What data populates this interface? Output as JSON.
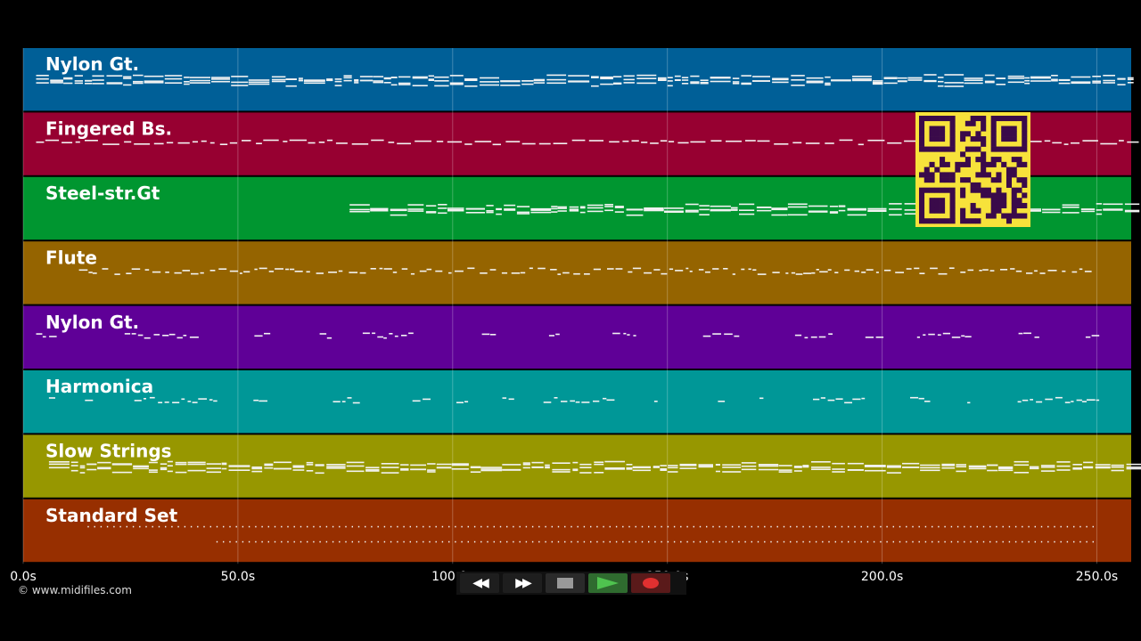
{
  "timeline": {
    "max_seconds": 258.0,
    "ticks": [
      {
        "value": 0,
        "label": "0.0s"
      },
      {
        "value": 50,
        "label": "50.0s"
      },
      {
        "value": 100,
        "label": "100.0s"
      },
      {
        "value": 150,
        "label": "150.0s"
      },
      {
        "value": 200,
        "label": "200.0s"
      },
      {
        "value": 250,
        "label": "250.0s"
      }
    ]
  },
  "tracks": [
    {
      "name": "Nylon Gt.",
      "color": "#005f97",
      "active": [
        3,
        258
      ],
      "density": "dense"
    },
    {
      "name": "Fingered Bs.",
      "color": "#970031",
      "active": [
        3,
        258
      ],
      "density": "sparse-line"
    },
    {
      "name": "Steel-str.Gt",
      "color": "#009630",
      "active": [
        76,
        258
      ],
      "density": "dense"
    },
    {
      "name": "Flute",
      "color": "#956400",
      "active": [
        13,
        248
      ],
      "density": "melody"
    },
    {
      "name": "Nylon Gt.",
      "color": "#5f0097",
      "active": [
        3,
        250
      ],
      "density": "phrases"
    },
    {
      "name": "Harmonica",
      "color": "#009797",
      "active": [
        6,
        258
      ],
      "density": "phrases"
    },
    {
      "name": "Slow Strings",
      "color": "#979700",
      "active": [
        6,
        258
      ],
      "density": "dense"
    },
    {
      "name": "Standard Set",
      "color": "#972f00",
      "active": [
        15,
        250
      ],
      "density": "drums"
    }
  ],
  "overlay": {
    "qr_icon": "qr-code-icon",
    "qr_bg": "#f7e23b",
    "qr_fg": "#3a0a4a"
  },
  "footer": {
    "copyright": "© www.midifiles.com"
  },
  "transport": {
    "rewind_icon": "rewind-icon",
    "fast_forward_icon": "fast-forward-icon",
    "stop_icon": "stop-icon",
    "play_icon": "play-icon",
    "record_icon": "record-icon"
  }
}
